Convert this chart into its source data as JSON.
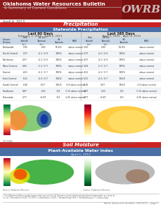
{
  "title_line1": "Oklahoma Water Resources Bulletin",
  "title_line2": "& Summary of Current Conditions",
  "date": "April 4, 2013",
  "logo_text": "OWRB",
  "section1_title": "Precipitation",
  "section1_sub": "Statewide Precipitation",
  "col1_title": "Last 60 Days",
  "col1_sub": "February 3, 2013 – April 4, 2013",
  "col2_title": "Last 365 Days",
  "col2_sub": "April 6, 2012 – April 4, 2013",
  "col_headers_left": [
    "Climate\nDivision",
    "Total\nRainfall\n(Inches)",
    "Oklahoma Climate\nDivision Normals\n(Inches)",
    "Percent\nof Normals",
    "Keetch-Byram KBDI"
  ],
  "rows_left": [
    [
      "Panhandle",
      "1.93",
      "2.43",
      "79.4%",
      "above normal"
    ],
    [
      "North Central",
      "2.37",
      "4.1 / 4.9",
      "100%",
      "above normal"
    ],
    [
      "Northeast",
      "4.37",
      "4.1 / 4.9",
      "100%",
      "above normal"
    ],
    [
      "West Central",
      "3.43",
      "2.1 / 3.7",
      "100%",
      "above normal"
    ],
    [
      "Central",
      "4.31",
      "4.1 / 3.7",
      "100%",
      "above normal"
    ],
    [
      "East Central",
      "5.31",
      "4.3 / 4.7",
      "104.8",
      "above normal"
    ],
    [
      "South Central",
      "4.18",
      "3.37",
      "104.8",
      "4.9 above normal"
    ],
    [
      "Southeast",
      "3.87",
      "1.23",
      "113",
      "5.15 above normal"
    ],
    [
      "Statewide",
      "3.77",
      "+3.87",
      "113",
      "4.91 above normal"
    ]
  ],
  "section2_title": "Soil Moisture",
  "section2_sub": "Plant-Available Water Index",
  "section2_date": "April 1, 2013",
  "header_bg": "#8B1A1A",
  "header_text": "#FFFFFF",
  "section_bar_bg": "#CC2222",
  "section_bar_text": "#FFFFFF",
  "blue_bar_bg": "#4A6FA5",
  "blue_bar_text": "#FFFFFF",
  "body_bg": "#FFFFFF",
  "footer_text": "Water Resources Bulletin  4/4/2013 – page 1",
  "logo_bg": "#8B1A1A",
  "note_line": "* The Oklahoma Water supply images that are not the full Summer period of limited agricultural information to a level of",
  "note_line2": "1 in of 1 Streamline 0.625 + 0.375 = 1 distribution: 0.625 + Streamlining 0.625 + Streamlining on 7 1 above days"
}
